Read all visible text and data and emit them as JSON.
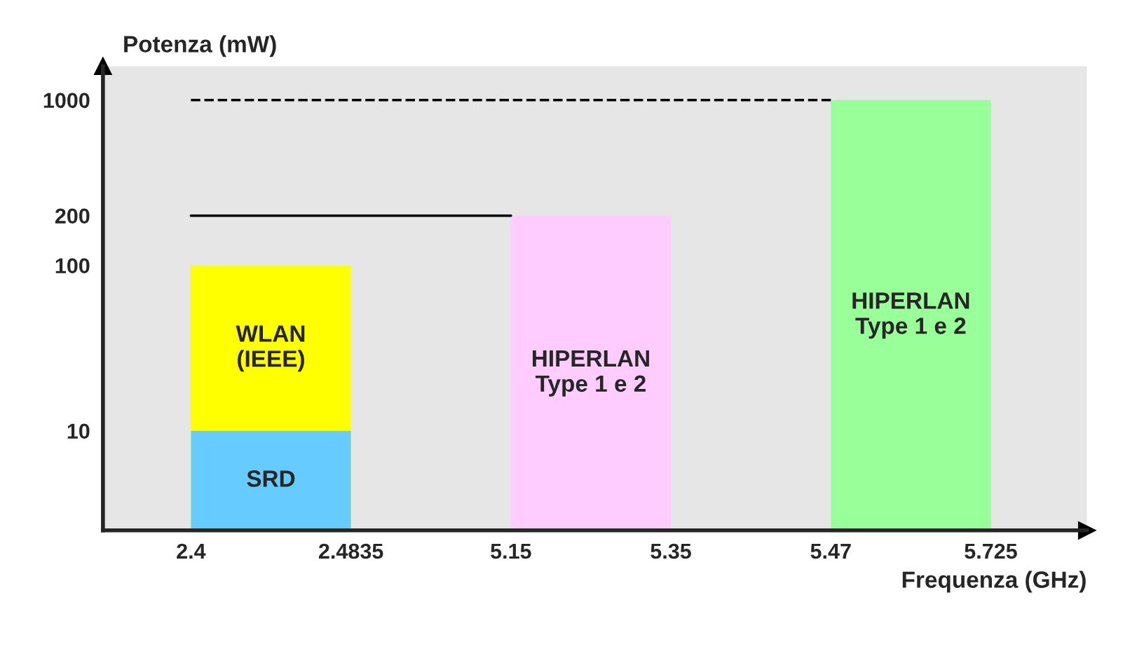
{
  "chart_data": {
    "type": "area",
    "xlabel": "Frequenza (GHz)",
    "ylabel": "Potenza (mW)",
    "categories": [
      "2.4",
      "2.4835",
      "5.15",
      "5.35",
      "5.47",
      "5.725"
    ],
    "log": "y",
    "ylim": [
      2.5,
      1600
    ],
    "yticks": [
      10,
      100,
      200,
      1000
    ],
    "grid": false,
    "legend": false,
    "series": [
      {
        "name": "WLAN\n(IEEE)",
        "color": "#ffff00",
        "x": [
          "2.4",
          "2.4835"
        ],
        "values": [
          100,
          100
        ]
      },
      {
        "name": "SRD",
        "color": "#66ccff",
        "x": [
          "2.4",
          "2.4835"
        ],
        "values": [
          10,
          10
        ]
      },
      {
        "name": "HIPERLAN\nType 1 e 2",
        "color": "#ffccff",
        "x": [
          "5.15",
          "5.35"
        ],
        "values": [
          200,
          200
        ]
      },
      {
        "name": "HIPERLAN\nType 1 e 2",
        "color": "#99ff99",
        "x": [
          "5.47",
          "5.725"
        ],
        "values": [
          1000,
          1000
        ]
      },
      {
        "type": "line",
        "color": "#000000",
        "line_style": "solid",
        "x": [
          "2.4",
          "5.15"
        ],
        "values": [
          200,
          200
        ]
      },
      {
        "type": "line",
        "color": "#000000",
        "line_style": "dashed",
        "x": [
          "2.4",
          "5.47"
        ],
        "values": [
          1000,
          1000
        ]
      }
    ]
  }
}
